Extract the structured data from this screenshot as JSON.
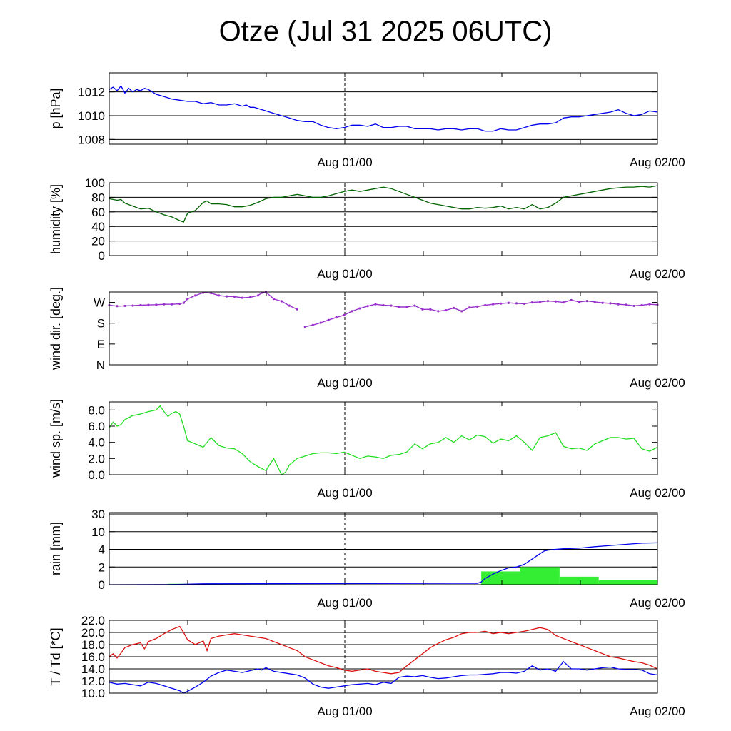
{
  "title": "Otze (Jul 31 2025 06UTC)",
  "x_tick_labels": [
    "Aug 01/00",
    "Aug 02/00"
  ],
  "chart_data": [
    {
      "type": "line",
      "ylabel": "p [hPa]",
      "ylim": [
        1007.6,
        1013.6
      ],
      "yticks": [
        "1008",
        "1010",
        "1012"
      ],
      "ytick_values": [
        1008,
        1010,
        1012
      ],
      "grid": "horizontal",
      "series": [
        {
          "color": "#0000ee",
          "x": [
            0,
            0.5,
            1,
            1.5,
            2,
            2.5,
            3,
            3.5,
            4,
            4.5,
            5,
            5.5,
            6,
            7,
            8,
            9,
            10,
            11,
            12,
            13,
            14,
            15,
            16,
            17,
            17.5,
            18,
            18.5,
            19,
            20,
            21,
            22,
            23,
            24,
            25,
            26,
            27,
            28,
            29,
            30,
            31,
            32,
            33,
            34,
            35,
            36,
            37,
            38,
            39,
            40,
            41,
            42,
            43,
            44,
            45,
            46,
            47,
            48,
            49,
            50,
            51,
            52,
            53,
            54,
            55,
            56,
            57,
            58,
            59,
            60,
            61,
            62,
            63,
            64,
            65,
            66,
            67,
            68,
            69,
            70
          ],
          "y": [
            1012.2,
            1012.4,
            1012.1,
            1012.5,
            1011.9,
            1012.3,
            1012.0,
            1012.2,
            1012.1,
            1012.3,
            1012.2,
            1012.0,
            1011.8,
            1011.6,
            1011.4,
            1011.3,
            1011.2,
            1011.2,
            1011.0,
            1011.1,
            1010.9,
            1010.9,
            1011.0,
            1010.8,
            1010.9,
            1010.7,
            1010.7,
            1010.6,
            1010.4,
            1010.2,
            1010.0,
            1009.8,
            1009.6,
            1009.5,
            1009.5,
            1009.2,
            1009.0,
            1008.9,
            1009.0,
            1009.2,
            1009.2,
            1009.1,
            1009.3,
            1009.0,
            1009.0,
            1009.1,
            1009.1,
            1008.9,
            1008.9,
            1008.9,
            1008.8,
            1008.9,
            1008.9,
            1008.8,
            1008.9,
            1008.9,
            1008.7,
            1008.7,
            1008.9,
            1008.8,
            1008.8,
            1009.0,
            1009.2,
            1009.3,
            1009.3,
            1009.4,
            1009.8,
            1009.9,
            1009.9,
            1010.0,
            1010.1,
            1010.2,
            1010.3,
            1010.5,
            1010.2,
            1010.0,
            1010.1,
            1010.4,
            1010.3
          ]
        }
      ]
    },
    {
      "type": "line",
      "ylabel": "humidity [%]",
      "ylim": [
        0,
        100
      ],
      "yticks": [
        "0",
        "20",
        "40",
        "60",
        "80",
        "100"
      ],
      "ytick_values": [
        0,
        20,
        40,
        60,
        80,
        100
      ],
      "grid": "horizontal",
      "series": [
        {
          "color": "#006400",
          "x": [
            0,
            1,
            1.5,
            2,
            3,
            4,
            5,
            6,
            7,
            8,
            9,
            9.5,
            10,
            11,
            12,
            12.5,
            13,
            14,
            15,
            16,
            17,
            18,
            19,
            20,
            21,
            22,
            23,
            24,
            25,
            26,
            27,
            28,
            29,
            30,
            31,
            32,
            33,
            34,
            35,
            36,
            37,
            38,
            39,
            40,
            41,
            42,
            43,
            44,
            45,
            46,
            47,
            48,
            49,
            50,
            51,
            52,
            53,
            54,
            55,
            56,
            57,
            58,
            59,
            60,
            61,
            62,
            63,
            64,
            65,
            66,
            67,
            68,
            69,
            70
          ],
          "y": [
            78,
            76,
            77,
            72,
            68,
            64,
            65,
            60,
            56,
            53,
            48,
            46,
            58,
            62,
            73,
            75,
            71,
            71,
            70,
            67,
            67,
            69,
            73,
            78,
            80,
            80,
            82,
            84,
            82,
            80,
            80,
            82,
            85,
            88,
            90,
            88,
            90,
            92,
            94,
            92,
            88,
            84,
            80,
            76,
            72,
            70,
            68,
            66,
            64,
            64,
            66,
            65,
            66,
            68,
            64,
            66,
            64,
            70,
            64,
            66,
            72,
            80,
            82,
            84,
            86,
            88,
            90,
            92,
            93,
            94,
            94,
            95,
            94,
            96
          ]
        }
      ]
    },
    {
      "type": "scatter",
      "ylabel": "wind dir. [deg.]",
      "ylim": [
        0,
        315
      ],
      "yticks": [
        "N",
        "E",
        "S",
        "W"
      ],
      "ytick_values": [
        0,
        90,
        180,
        270
      ],
      "grid": "none",
      "series": [
        {
          "color": "#9932cc",
          "x": [
            0,
            1,
            2,
            3,
            4,
            5,
            6,
            7,
            8,
            9,
            9.5,
            10,
            11,
            12,
            13,
            14,
            15,
            16,
            17,
            18,
            19,
            19.5,
            20,
            21,
            22,
            23,
            24,
            25,
            26,
            27,
            28,
            29,
            30,
            31,
            32,
            33,
            34,
            35,
            36,
            37,
            38,
            39,
            40,
            41,
            42,
            43,
            44,
            45,
            46,
            47,
            48,
            49,
            50,
            51,
            52,
            53,
            54,
            55,
            56,
            57,
            58,
            59,
            60,
            61,
            62,
            63,
            64,
            65,
            66,
            67,
            68,
            69,
            70
          ],
          "y": [
            258,
            254,
            255,
            256,
            258,
            259,
            260,
            262,
            262,
            264,
            268,
            285,
            300,
            312,
            310,
            300,
            296,
            295,
            290,
            292,
            300,
            312,
            315,
            285,
            275,
            256,
            240,
            165,
            172,
            182,
            194,
            205,
            215,
            232,
            244,
            254,
            262,
            258,
            256,
            250,
            250,
            256,
            240,
            240,
            232,
            236,
            246,
            232,
            248,
            252,
            258,
            262,
            265,
            268,
            266,
            264,
            270,
            272,
            276,
            274,
            270,
            280,
            272,
            276,
            272,
            268,
            266,
            262,
            260,
            255,
            258,
            262,
            260
          ]
        }
      ]
    },
    {
      "type": "line",
      "ylabel": "wind sp. [m/s]",
      "ylim": [
        0,
        9
      ],
      "yticks": [
        "0.0",
        "2.0",
        "4.0",
        "6.0",
        "8.0"
      ],
      "ytick_values": [
        0,
        2,
        4,
        6,
        8
      ],
      "grid": "none",
      "series": [
        {
          "color": "#22dd22",
          "x": [
            0,
            0.5,
            1,
            1.5,
            2,
            3,
            4,
            5,
            6,
            6.5,
            7,
            7.5,
            8,
            8.5,
            9,
            9.5,
            10,
            11,
            12,
            13,
            14,
            15,
            16,
            17,
            18,
            19,
            20,
            21,
            22,
            22.5,
            23,
            24,
            25,
            26,
            27,
            28,
            29,
            30,
            31,
            32,
            33,
            34,
            35,
            36,
            37,
            38,
            39,
            40,
            41,
            42,
            43,
            44,
            45,
            46,
            47,
            48,
            49,
            50,
            51,
            52,
            53,
            54,
            55,
            56,
            57,
            58,
            59,
            60,
            61,
            62,
            63,
            64,
            65,
            66,
            67,
            68,
            69,
            70
          ],
          "y": [
            5.8,
            6.5,
            6.0,
            6.2,
            6.8,
            7.3,
            7.5,
            7.8,
            8.0,
            8.5,
            7.8,
            7.2,
            7.6,
            7.8,
            7.5,
            6.0,
            4.2,
            3.8,
            3.4,
            4.6,
            3.6,
            3.3,
            3.2,
            2.6,
            1.6,
            1.0,
            0.5,
            2.0,
            0.0,
            0.3,
            1.2,
            2.0,
            2.3,
            2.6,
            2.7,
            2.7,
            2.6,
            2.8,
            2.4,
            2.0,
            2.3,
            2.2,
            2.0,
            2.4,
            2.5,
            2.8,
            3.8,
            3.2,
            3.8,
            4.0,
            4.6,
            4.0,
            4.8,
            4.3,
            4.9,
            4.7,
            3.9,
            4.4,
            4.2,
            4.8,
            4.0,
            3.0,
            4.6,
            4.8,
            5.2,
            3.5,
            3.2,
            3.3,
            3.0,
            3.8,
            4.2,
            4.6,
            4.6,
            4.4,
            4.5,
            3.2,
            2.9,
            3.4
          ]
        }
      ]
    },
    {
      "type": "bar+line",
      "ylabel": "rain [mm]",
      "ylim": [
        0,
        30
      ],
      "yticks": [
        "0",
        "2",
        "4",
        "10",
        "30"
      ],
      "ytick_values": [
        0,
        2,
        4,
        10,
        30
      ],
      "scale": "custom (0, 2, 4, 10, 30 evenly spaced)",
      "grid": "horizontal",
      "bars": {
        "color": "#33ee33",
        "intervals": [
          [
            7.5,
            12.5,
            0.1
          ],
          [
            12.5,
            47.5,
            0.02
          ],
          [
            47.5,
            52.5,
            1.5
          ],
          [
            52.5,
            57.5,
            2.0
          ],
          [
            57.5,
            62.5,
            0.9
          ],
          [
            62.5,
            70,
            0.5
          ]
        ]
      },
      "series": [
        {
          "color": "#0000ee",
          "x": [
            0,
            8,
            12,
            47,
            47.5,
            48,
            49,
            50,
            51,
            52,
            53,
            54,
            55,
            55.5,
            56,
            57,
            58,
            60,
            62,
            64,
            66,
            68,
            70
          ],
          "y": [
            0,
            0.02,
            0.1,
            0.15,
            0.3,
            0.7,
            1.2,
            1.6,
            1.9,
            2.0,
            2.3,
            2.9,
            3.5,
            3.8,
            3.9,
            4.0,
            4.2,
            4.4,
            4.9,
            5.3,
            5.7,
            6.1,
            6.2
          ]
        }
      ]
    },
    {
      "type": "line",
      "ylabel": "T / Td [*C]",
      "ylim": [
        10,
        22
      ],
      "yticks": [
        "10.0",
        "12.0",
        "14.0",
        "16.0",
        "18.0",
        "20.0",
        "22.0"
      ],
      "ytick_values": [
        10,
        12,
        14,
        16,
        18,
        20,
        22
      ],
      "grid": "horizontal",
      "series": [
        {
          "color": "#dd1111",
          "x": [
            0,
            0.5,
            1,
            1.5,
            2,
            3,
            4,
            4.5,
            5,
            6,
            7,
            8,
            9,
            9.5,
            10,
            11,
            12,
            12.5,
            13,
            14,
            15,
            16,
            17,
            18,
            19,
            20,
            21,
            22,
            23,
            24,
            25,
            26,
            27,
            28,
            29,
            30,
            31,
            32,
            33,
            34,
            35,
            36,
            37,
            38,
            39,
            40,
            41,
            42,
            43,
            44,
            45,
            46,
            47,
            48,
            49,
            50,
            51,
            52,
            53,
            54,
            55,
            56,
            57,
            58,
            59,
            60,
            61,
            62,
            63,
            64,
            65,
            66,
            67,
            68,
            69,
            70
          ],
          "y": [
            16.0,
            16.5,
            15.8,
            16.6,
            17.5,
            18.0,
            18.3,
            17.3,
            18.5,
            19.0,
            19.8,
            20.5,
            21.0,
            20.0,
            18.8,
            18.0,
            18.6,
            17.0,
            19.0,
            19.4,
            19.6,
            19.8,
            19.6,
            19.4,
            19.2,
            19.0,
            18.5,
            18.0,
            17.5,
            17.0,
            16.0,
            15.5,
            15.0,
            14.5,
            14.2,
            13.8,
            13.6,
            13.8,
            14.0,
            13.6,
            13.4,
            13.2,
            13.4,
            14.5,
            15.5,
            16.5,
            17.5,
            18.2,
            18.8,
            19.2,
            19.8,
            20.0,
            20.0,
            20.2,
            19.8,
            20.0,
            19.8,
            20.0,
            20.2,
            20.5,
            20.8,
            20.5,
            19.5,
            19.0,
            18.5,
            18.0,
            17.5,
            17.0,
            16.5,
            16.0,
            15.8,
            15.5,
            15.2,
            15.0,
            14.6,
            14.0
          ]
        },
        {
          "color": "#0000ee",
          "x": [
            0,
            1,
            2,
            3,
            4,
            5,
            6,
            7,
            8,
            9,
            9.5,
            10,
            11,
            12,
            13,
            14,
            15,
            16,
            17,
            18,
            19,
            19.5,
            20,
            21,
            22,
            23,
            24,
            25,
            26,
            27,
            28,
            29,
            30,
            31,
            32,
            33,
            34,
            35,
            36,
            37,
            38,
            39,
            40,
            41,
            42,
            43,
            44,
            45,
            46,
            47,
            48,
            49,
            50,
            51,
            52,
            53,
            54,
            55,
            56,
            57,
            58,
            59,
            60,
            61,
            62,
            63,
            64,
            65,
            66,
            67,
            68,
            69,
            70
          ],
          "y": [
            11.8,
            11.5,
            11.6,
            11.4,
            11.2,
            11.8,
            11.6,
            11.2,
            10.8,
            10.4,
            10.0,
            10.3,
            11.0,
            11.8,
            12.8,
            13.4,
            13.8,
            13.6,
            13.4,
            13.7,
            14.0,
            13.8,
            14.2,
            13.6,
            13.4,
            13.2,
            13.0,
            12.5,
            11.5,
            11.0,
            10.8,
            11.0,
            11.2,
            11.4,
            11.5,
            11.6,
            11.4,
            11.8,
            11.6,
            12.6,
            12.8,
            12.7,
            12.9,
            12.6,
            12.4,
            12.5,
            12.7,
            12.9,
            13.0,
            13.0,
            13.1,
            13.2,
            13.4,
            13.4,
            13.3,
            13.6,
            14.5,
            13.8,
            14.0,
            13.6,
            15.2,
            14.0,
            14.0,
            13.8,
            14.0,
            14.2,
            14.3,
            14.0,
            13.9,
            13.9,
            13.8,
            13.2,
            13.0
          ]
        }
      ]
    }
  ]
}
